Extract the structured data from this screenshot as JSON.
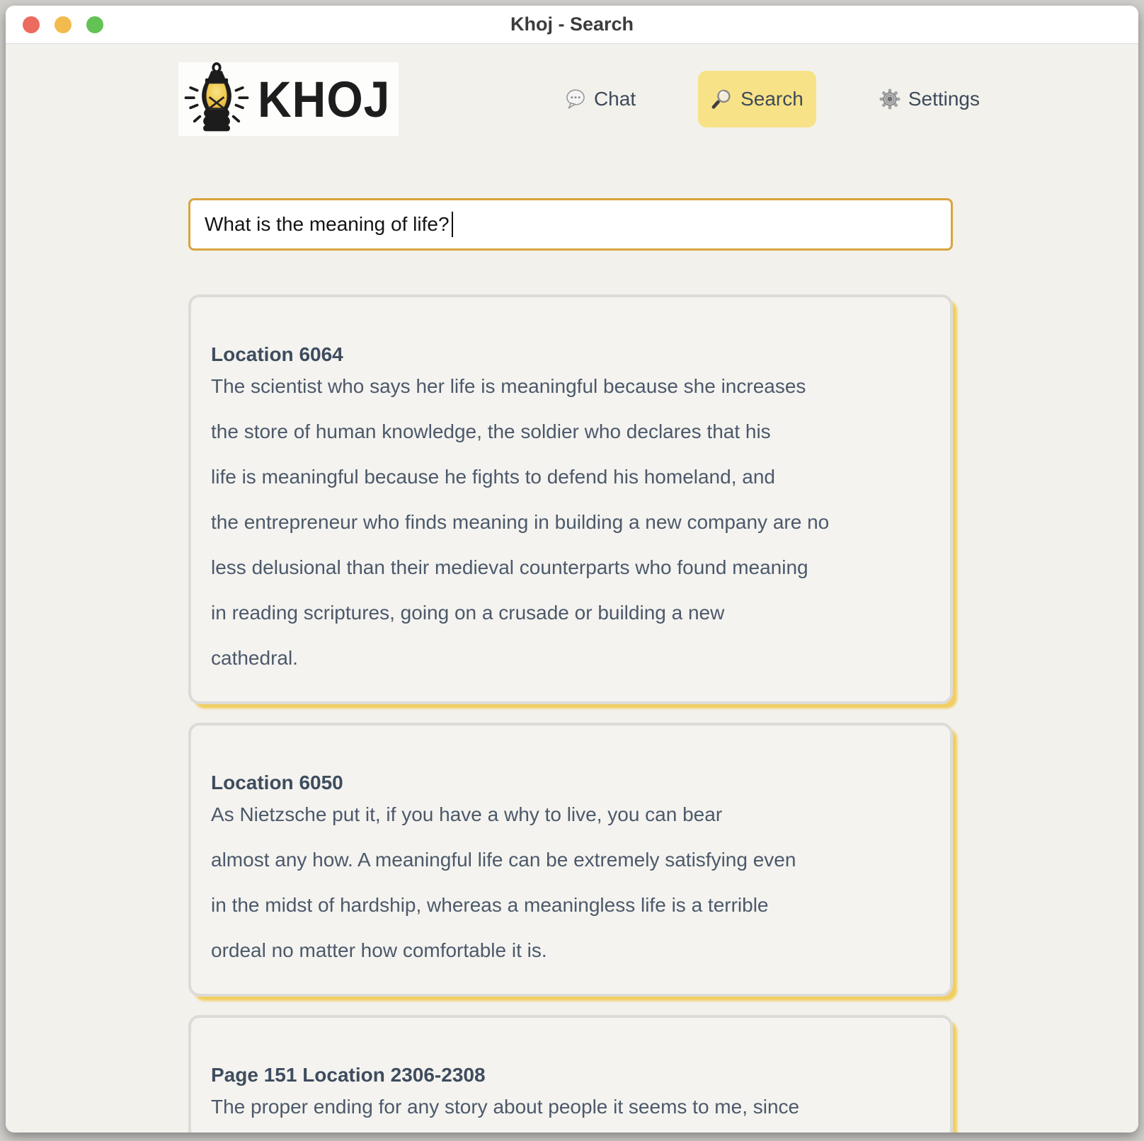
{
  "window": {
    "title": "Khoj - Search",
    "traffic_lights": [
      {
        "name": "close",
        "color": "#ec6a5e"
      },
      {
        "name": "minimize",
        "color": "#f2bb4d"
      },
      {
        "name": "zoom",
        "color": "#62c254"
      }
    ]
  },
  "header": {
    "logo_text": "KHOJ",
    "logo_icon": "lantern-icon",
    "nav": [
      {
        "label": "Chat",
        "icon": "chat-bubble-icon",
        "active": false
      },
      {
        "label": "Search",
        "icon": "magnifier-icon",
        "active": true
      },
      {
        "label": "Settings",
        "icon": "gear-icon",
        "active": false
      }
    ]
  },
  "search": {
    "value": "What is the meaning of life?"
  },
  "results": [
    {
      "heading": "Location 6064",
      "lines": [
        "The scientist who says her life is meaningful because she increases",
        "the store of human knowledge, the soldier who declares that his",
        "life is meaningful because he fights to defend his homeland, and",
        "the entrepreneur who finds meaning in building a new company are no",
        "less delusional than their medieval counterparts who found meaning",
        "in reading scriptures, going on a crusade or building a new",
        "cathedral."
      ]
    },
    {
      "heading": "Location 6050",
      "lines": [
        "As Nietzsche put it, if you have a why to live, you can bear",
        "almost any how. A meaningful life can be extremely satisfying even",
        "in the midst of hardship, whereas a meaningless life is a terrible",
        "ordeal no matter how comfortable it is."
      ]
    },
    {
      "heading": "Page 151 Location 2306-2308",
      "lines": [
        "The proper ending for any story about people it seems to me, since"
      ]
    }
  ],
  "colors": {
    "accent_yellow": "#f8e287",
    "input_border": "#d9a43d",
    "card_glow": "#f1ce5f",
    "heading_text": "#3e4c5e",
    "body_text": "#4c596b"
  }
}
